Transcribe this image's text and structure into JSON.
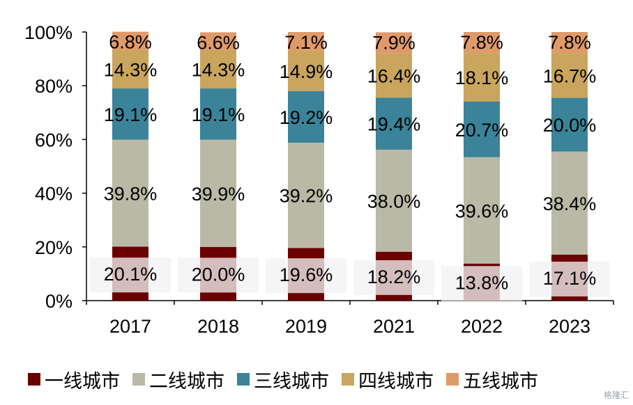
{
  "chart_data": {
    "type": "bar",
    "stacked": true,
    "categories": [
      "2017",
      "2018",
      "2019",
      "2021",
      "2022",
      "2023"
    ],
    "series": [
      {
        "name": "一线城市",
        "color": "#6b0000",
        "values": [
          20.1,
          20.0,
          19.6,
          18.2,
          13.8,
          17.1
        ],
        "labels": [
          "20.1%",
          "20.0%",
          "19.6%",
          "18.2%",
          "13.8%",
          "17.1%"
        ]
      },
      {
        "name": "二线城市",
        "color": "#b9b9a6",
        "values": [
          39.8,
          39.9,
          39.2,
          38.0,
          39.6,
          38.4
        ],
        "labels": [
          "39.8%",
          "39.9%",
          "39.2%",
          "38.0%",
          "39.6%",
          "38.4%"
        ]
      },
      {
        "name": "三线城市",
        "color": "#3a8399",
        "values": [
          19.1,
          19.1,
          19.2,
          19.4,
          20.7,
          20.0
        ],
        "labels": [
          "19.1%",
          "19.1%",
          "19.2%",
          "19.4%",
          "20.7%",
          "20.0%"
        ]
      },
      {
        "name": "四线城市",
        "color": "#c9a55d",
        "values": [
          14.3,
          14.3,
          14.9,
          16.4,
          18.1,
          16.7
        ],
        "labels": [
          "14.3%",
          "14.3%",
          "14.9%",
          "16.4%",
          "18.1%",
          "16.7%"
        ]
      },
      {
        "name": "五线城市",
        "color": "#e09a6a",
        "values": [
          6.8,
          6.6,
          7.1,
          7.9,
          7.8,
          7.8
        ],
        "labels": [
          "6.8%",
          "6.6%",
          "7.1%",
          "7.9%",
          "7.8%",
          "7.8%"
        ]
      }
    ],
    "ylim": [
      0,
      100
    ],
    "yticks": [
      "0%",
      "20%",
      "40%",
      "60%",
      "80%",
      "100%"
    ],
    "grid": false,
    "legend_position": "bottom"
  },
  "watermark": "格隆汇"
}
